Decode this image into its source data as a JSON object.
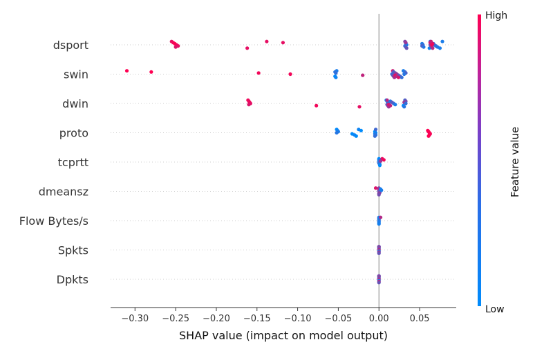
{
  "chart_data": {
    "type": "scatter",
    "xlabel": "SHAP value (impact on model output)",
    "xticks": [
      -0.3,
      -0.25,
      -0.2,
      -0.15,
      -0.1,
      -0.05,
      0.0,
      0.05
    ],
    "xtick_labels": [
      "−0.30",
      "−0.25",
      "−0.20",
      "−0.15",
      "−0.10",
      "−0.05",
      "0.00",
      "0.05"
    ],
    "xlim": [
      -0.33,
      0.095
    ],
    "colorbar": {
      "title": "Feature value",
      "high_label": "High",
      "low_label": "Low",
      "high_color": "#ff0052",
      "low_color": "#008bfb"
    },
    "features": [
      {
        "name": "dsport",
        "points": [
          [
            -0.255,
            0.9
          ],
          [
            -0.253,
            0.95
          ],
          [
            -0.251,
            1.0
          ],
          [
            -0.249,
            0.95
          ],
          [
            -0.247,
            0.9
          ],
          [
            -0.25,
            0.85
          ],
          [
            -0.162,
            0.9
          ],
          [
            -0.138,
            0.9
          ],
          [
            -0.118,
            0.9
          ],
          [
            0.033,
            0.0
          ],
          [
            0.034,
            0.1
          ],
          [
            0.032,
            0.2
          ],
          [
            0.033,
            0.3
          ],
          [
            0.034,
            0.4
          ],
          [
            0.032,
            0.5
          ],
          [
            0.033,
            0.6
          ],
          [
            0.053,
            0.1
          ],
          [
            0.054,
            0.2
          ],
          [
            0.053,
            0.3
          ],
          [
            0.055,
            0.15
          ],
          [
            0.062,
            0.05
          ],
          [
            0.063,
            0.1
          ],
          [
            0.064,
            0.2
          ],
          [
            0.065,
            0.3
          ],
          [
            0.063,
            0.4
          ],
          [
            0.064,
            0.5
          ],
          [
            0.065,
            0.6
          ],
          [
            0.066,
            0.7
          ],
          [
            0.064,
            0.8
          ],
          [
            0.063,
            0.9
          ],
          [
            0.067,
            0.15
          ],
          [
            0.068,
            0.3
          ],
          [
            0.07,
            0.2
          ],
          [
            0.072,
            0.15
          ],
          [
            0.075,
            0.1
          ],
          [
            0.078,
            0.1
          ],
          [
            0.064,
            0.75
          ],
          [
            0.066,
            0.85
          ],
          [
            0.065,
            0.95
          ]
        ]
      },
      {
        "name": "swin",
        "points": [
          [
            -0.31,
            1.0
          ],
          [
            -0.28,
            1.0
          ],
          [
            -0.148,
            0.95
          ],
          [
            -0.109,
            0.95
          ],
          [
            -0.02,
            0.75
          ],
          [
            -0.054,
            0.0
          ],
          [
            -0.053,
            0.05
          ],
          [
            -0.052,
            0.1
          ],
          [
            -0.054,
            0.15
          ],
          [
            -0.053,
            0.2
          ],
          [
            0.016,
            0.2
          ],
          [
            0.017,
            0.35
          ],
          [
            0.018,
            0.5
          ],
          [
            0.019,
            0.65
          ],
          [
            0.017,
            0.8
          ],
          [
            0.018,
            0.3
          ],
          [
            0.02,
            0.45
          ],
          [
            0.022,
            0.6
          ],
          [
            0.024,
            0.4
          ],
          [
            0.026,
            0.3
          ],
          [
            0.028,
            0.2
          ],
          [
            0.03,
            0.1
          ],
          [
            0.032,
            0.2
          ],
          [
            0.033,
            0.3
          ],
          [
            0.031,
            0.15
          ],
          [
            0.02,
            0.9
          ],
          [
            0.022,
            0.7
          ],
          [
            0.024,
            0.85
          ]
        ]
      },
      {
        "name": "dwin",
        "points": [
          [
            -0.161,
            0.95
          ],
          [
            -0.16,
            0.9
          ],
          [
            -0.159,
            0.95
          ],
          [
            -0.158,
            0.9
          ],
          [
            -0.16,
            0.85
          ],
          [
            -0.077,
            0.95
          ],
          [
            -0.024,
            0.9
          ],
          [
            0.009,
            0.0
          ],
          [
            0.01,
            0.1
          ],
          [
            0.011,
            0.2
          ],
          [
            0.012,
            0.3
          ],
          [
            0.01,
            0.4
          ],
          [
            0.011,
            0.5
          ],
          [
            0.012,
            0.6
          ],
          [
            0.01,
            0.7
          ],
          [
            0.014,
            0.15
          ],
          [
            0.016,
            0.35
          ],
          [
            0.018,
            0.25
          ],
          [
            0.02,
            0.1
          ],
          [
            0.03,
            0.0
          ],
          [
            0.031,
            0.15
          ],
          [
            0.032,
            0.3
          ],
          [
            0.033,
            0.45
          ],
          [
            0.031,
            0.6
          ],
          [
            0.033,
            0.2
          ],
          [
            0.012,
            0.85
          ],
          [
            0.014,
            0.75
          ]
        ]
      },
      {
        "name": "proto",
        "points": [
          [
            -0.052,
            0.0
          ],
          [
            -0.051,
            0.05
          ],
          [
            -0.05,
            0.1
          ],
          [
            -0.052,
            0.15
          ],
          [
            -0.033,
            0.0
          ],
          [
            -0.03,
            0.05
          ],
          [
            -0.028,
            0.0
          ],
          [
            -0.025,
            0.05
          ],
          [
            -0.022,
            0.0
          ],
          [
            -0.005,
            0.0
          ],
          [
            -0.004,
            0.05
          ],
          [
            -0.005,
            0.1
          ],
          [
            -0.004,
            0.15
          ],
          [
            -0.005,
            0.2
          ],
          [
            -0.004,
            0.25
          ],
          [
            0.06,
            1.0
          ],
          [
            0.061,
            0.98
          ],
          [
            0.062,
            1.0
          ],
          [
            0.063,
            0.98
          ],
          [
            0.062,
            0.96
          ],
          [
            0.061,
            1.0
          ]
        ]
      },
      {
        "name": "tcprtt",
        "points": [
          [
            0.0,
            0.0
          ],
          [
            0.0,
            0.05
          ],
          [
            0.0,
            0.1
          ],
          [
            0.0,
            0.15
          ],
          [
            0.0,
            0.2
          ],
          [
            0.001,
            0.1
          ],
          [
            0.001,
            0.0
          ],
          [
            0.004,
            0.9
          ],
          [
            0.006,
            0.95
          ],
          [
            0.002,
            0.6
          ]
        ]
      },
      {
        "name": "dmeansz",
        "points": [
          [
            0.0,
            0.5
          ],
          [
            0.0,
            0.6
          ],
          [
            0.0,
            0.7
          ],
          [
            0.0,
            0.4
          ],
          [
            0.001,
            0.5
          ],
          [
            0.0,
            0.55
          ],
          [
            0.0,
            0.45
          ],
          [
            -0.004,
            0.85
          ],
          [
            0.002,
            0.05
          ],
          [
            0.003,
            0.1
          ]
        ]
      },
      {
        "name": "Flow Bytes/s",
        "points": [
          [
            0.0,
            0.1
          ],
          [
            0.0,
            0.15
          ],
          [
            0.0,
            0.05
          ],
          [
            0.0,
            0.2
          ],
          [
            0.0,
            0.1
          ],
          [
            0.0,
            0.12
          ],
          [
            0.0,
            0.08
          ],
          [
            0.002,
            0.7
          ]
        ]
      },
      {
        "name": "Spkts",
        "points": [
          [
            0.0,
            0.2
          ],
          [
            0.0,
            0.7
          ],
          [
            0.0,
            0.3
          ],
          [
            0.0,
            0.8
          ],
          [
            0.0,
            0.1
          ],
          [
            0.0,
            0.6
          ],
          [
            0.0,
            0.4
          ],
          [
            0.0,
            0.5
          ]
        ]
      },
      {
        "name": "Dpkts",
        "points": [
          [
            0.0,
            0.2
          ],
          [
            0.0,
            0.6
          ],
          [
            0.0,
            0.3
          ],
          [
            0.0,
            0.8
          ],
          [
            0.0,
            0.1
          ],
          [
            0.0,
            0.7
          ],
          [
            0.0,
            0.4
          ],
          [
            0.0,
            0.5
          ]
        ]
      }
    ]
  }
}
